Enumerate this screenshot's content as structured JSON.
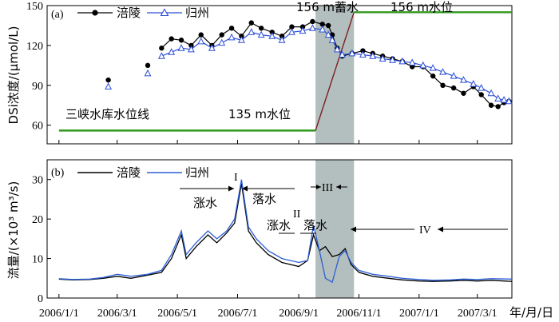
{
  "chart_data": [
    {
      "type": "scatter",
      "panel_label": "(a)",
      "ylabel": "DSi浓度/(μmol/L)",
      "ylim": [
        46,
        150
      ],
      "yticks": [
        60,
        90,
        120,
        150
      ],
      "series": [
        {
          "name": "涪陵",
          "color": "#000000",
          "marker": "filled-circle",
          "points": [
            [
              "2006-02-20",
              94
            ],
            [
              "2006-04-01",
              105
            ],
            [
              "2006-04-15",
              118
            ],
            [
              "2006-04-25",
              125
            ],
            [
              "2006-05-05",
              124
            ],
            [
              "2006-05-15",
              120
            ],
            [
              "2006-05-25",
              128
            ],
            [
              "2006-06-05",
              120
            ],
            [
              "2006-06-15",
              128
            ],
            [
              "2006-06-25",
              133
            ],
            [
              "2006-07-05",
              127
            ],
            [
              "2006-07-15",
              137
            ],
            [
              "2006-07-25",
              133
            ],
            [
              "2006-08-05",
              130
            ],
            [
              "2006-08-15",
              127
            ],
            [
              "2006-08-25",
              134
            ],
            [
              "2006-09-05",
              134
            ],
            [
              "2006-09-15",
              138
            ],
            [
              "2006-09-25",
              136
            ],
            [
              "2006-10-01",
              135
            ],
            [
              "2006-10-05",
              128
            ],
            [
              "2006-10-10",
              118
            ],
            [
              "2006-10-15",
              112
            ],
            [
              "2006-10-25",
              114
            ],
            [
              "2006-11-05",
              116
            ],
            [
              "2006-11-15",
              114
            ],
            [
              "2006-11-25",
              112
            ],
            [
              "2006-12-05",
              110
            ],
            [
              "2006-12-15",
              108
            ],
            [
              "2006-12-25",
              104
            ],
            [
              "2007-01-05",
              104
            ],
            [
              "2007-01-15",
              97
            ],
            [
              "2007-01-25",
              90
            ],
            [
              "2007-02-05",
              88
            ],
            [
              "2007-02-15",
              84
            ],
            [
              "2007-02-25",
              89
            ],
            [
              "2007-03-05",
              83
            ],
            [
              "2007-03-15",
              75
            ],
            [
              "2007-03-22",
              74
            ],
            [
              "2007-03-28",
              77
            ],
            [
              "2007-04-02",
              78
            ]
          ]
        },
        {
          "name": "归州",
          "color": "#2c4fd6",
          "marker": "open-triangle",
          "points": [
            [
              "2006-02-20",
              89
            ],
            [
              "2006-04-01",
              99
            ],
            [
              "2006-04-15",
              112
            ],
            [
              "2006-04-25",
              115
            ],
            [
              "2006-05-05",
              118
            ],
            [
              "2006-05-15",
              117
            ],
            [
              "2006-05-25",
              123
            ],
            [
              "2006-06-05",
              118
            ],
            [
              "2006-06-15",
              122
            ],
            [
              "2006-06-25",
              126
            ],
            [
              "2006-07-05",
              124
            ],
            [
              "2006-07-15",
              130
            ],
            [
              "2006-07-25",
              128
            ],
            [
              "2006-08-05",
              127
            ],
            [
              "2006-08-15",
              124
            ],
            [
              "2006-08-25",
              130
            ],
            [
              "2006-09-05",
              131
            ],
            [
              "2006-09-15",
              133
            ],
            [
              "2006-09-25",
              132
            ],
            [
              "2006-10-01",
              128
            ],
            [
              "2006-10-05",
              124
            ],
            [
              "2006-10-10",
              117
            ],
            [
              "2006-10-15",
              113
            ],
            [
              "2006-10-25",
              114
            ],
            [
              "2006-11-05",
              113
            ],
            [
              "2006-11-15",
              112
            ],
            [
              "2006-11-25",
              110
            ],
            [
              "2006-12-05",
              109
            ],
            [
              "2006-12-15",
              108
            ],
            [
              "2006-12-25",
              107
            ],
            [
              "2007-01-05",
              105
            ],
            [
              "2007-01-15",
              103
            ],
            [
              "2007-01-25",
              100
            ],
            [
              "2007-02-05",
              97
            ],
            [
              "2007-02-15",
              94
            ],
            [
              "2007-02-25",
              91
            ],
            [
              "2007-03-05",
              88
            ],
            [
              "2007-03-15",
              84
            ],
            [
              "2007-03-22",
              80
            ],
            [
              "2007-03-28",
              79
            ],
            [
              "2007-04-02",
              78
            ]
          ]
        }
      ],
      "water_level_line": {
        "color": "#2e9a1c",
        "ramp_color": "#7a1f1f",
        "points": [
          [
            "2006-01-01",
            56
          ],
          [
            "2006-09-18",
            56
          ],
          [
            "2006-10-27",
            145
          ],
          [
            "2007-04-05",
            145
          ]
        ]
      },
      "shaded_period": {
        "from": "2006-09-18",
        "to": "2006-10-27",
        "color": "#b3bfbe"
      },
      "annotations": {
        "reservoir_line": "三峡水库水位线",
        "level_135": "135 m水位",
        "impounding": "156 m蓄水",
        "level_156": "156 m水位"
      }
    },
    {
      "type": "line",
      "panel_label": "(b)",
      "ylabel": "流量/(×10³ m³/s)",
      "ylim": [
        0,
        35
      ],
      "yticks": [
        0,
        10,
        20,
        30
      ],
      "series": [
        {
          "name": "涪陵",
          "color": "#000000",
          "points": [
            [
              "2006-01-01",
              4.8
            ],
            [
              "2006-01-15",
              4.6
            ],
            [
              "2006-02-01",
              4.7
            ],
            [
              "2006-02-15",
              5.0
            ],
            [
              "2006-03-01",
              5.5
            ],
            [
              "2006-03-15",
              5.0
            ],
            [
              "2006-04-01",
              5.8
            ],
            [
              "2006-04-15",
              6.5
            ],
            [
              "2006-04-25",
              10.0
            ],
            [
              "2006-05-05",
              16.0
            ],
            [
              "2006-05-10",
              10.0
            ],
            [
              "2006-05-20",
              13.0
            ],
            [
              "2006-06-01",
              16.0
            ],
            [
              "2006-06-10",
              14.0
            ],
            [
              "2006-06-20",
              16.5
            ],
            [
              "2006-06-28",
              19.0
            ],
            [
              "2006-07-05",
              29.0
            ],
            [
              "2006-07-12",
              17.0
            ],
            [
              "2006-07-20",
              14.0
            ],
            [
              "2006-08-01",
              11.0
            ],
            [
              "2006-08-15",
              9.0
            ],
            [
              "2006-09-01",
              8.0
            ],
            [
              "2006-09-10",
              9.5
            ],
            [
              "2006-09-16",
              16.0
            ],
            [
              "2006-09-22",
              12.0
            ],
            [
              "2006-09-28",
              13.0
            ],
            [
              "2006-10-05",
              10.5
            ],
            [
              "2006-10-12",
              11.0
            ],
            [
              "2006-10-18",
              12.5
            ],
            [
              "2006-10-24",
              8.5
            ],
            [
              "2006-11-01",
              6.5
            ],
            [
              "2006-11-15",
              5.5
            ],
            [
              "2006-12-01",
              5.0
            ],
            [
              "2006-12-15",
              4.6
            ],
            [
              "2007-01-01",
              4.3
            ],
            [
              "2007-01-15",
              4.2
            ],
            [
              "2007-02-01",
              4.3
            ],
            [
              "2007-02-15",
              4.5
            ],
            [
              "2007-03-01",
              4.3
            ],
            [
              "2007-03-15",
              4.5
            ],
            [
              "2007-04-05",
              4.2
            ]
          ]
        },
        {
          "name": "归州",
          "color": "#2c5fd6",
          "points": [
            [
              "2006-01-01",
              4.9
            ],
            [
              "2006-01-15",
              4.7
            ],
            [
              "2006-02-01",
              4.8
            ],
            [
              "2006-02-15",
              5.2
            ],
            [
              "2006-03-01",
              6.0
            ],
            [
              "2006-03-15",
              5.5
            ],
            [
              "2006-04-01",
              6.0
            ],
            [
              "2006-04-15",
              7.0
            ],
            [
              "2006-04-25",
              11.0
            ],
            [
              "2006-05-05",
              17.0
            ],
            [
              "2006-05-10",
              11.0
            ],
            [
              "2006-05-20",
              14.0
            ],
            [
              "2006-06-01",
              17.0
            ],
            [
              "2006-06-10",
              15.0
            ],
            [
              "2006-06-20",
              17.0
            ],
            [
              "2006-06-28",
              20.0
            ],
            [
              "2006-07-05",
              30.0
            ],
            [
              "2006-07-12",
              18.0
            ],
            [
              "2006-07-20",
              15.0
            ],
            [
              "2006-08-01",
              12.0
            ],
            [
              "2006-08-15",
              10.0
            ],
            [
              "2006-09-01",
              9.0
            ],
            [
              "2006-09-10",
              9.5
            ],
            [
              "2006-09-16",
              18.5
            ],
            [
              "2006-09-22",
              12.0
            ],
            [
              "2006-09-28",
              5.0
            ],
            [
              "2006-10-05",
              4.0
            ],
            [
              "2006-10-12",
              10.5
            ],
            [
              "2006-10-18",
              12.0
            ],
            [
              "2006-10-24",
              9.0
            ],
            [
              "2006-11-01",
              7.0
            ],
            [
              "2006-11-15",
              6.0
            ],
            [
              "2006-12-01",
              5.5
            ],
            [
              "2006-12-15",
              5.0
            ],
            [
              "2007-01-01",
              4.7
            ],
            [
              "2007-01-15",
              4.5
            ],
            [
              "2007-02-01",
              4.6
            ],
            [
              "2007-02-15",
              4.8
            ],
            [
              "2007-03-01",
              4.7
            ],
            [
              "2007-03-15",
              4.9
            ],
            [
              "2007-04-05",
              4.8
            ]
          ]
        }
      ],
      "shaded_period": {
        "from": "2006-09-18",
        "to": "2006-10-27",
        "color": "#b3bfbe"
      },
      "annotations": {
        "peak_I": "I",
        "rise_1": "涨水",
        "fall_1": "落水",
        "peak_II": "II",
        "rise_2": "涨水",
        "fall_2": "落水",
        "period_III": "III",
        "period_IV": "IV"
      }
    }
  ],
  "x_axis": {
    "range": [
      "2005-12-20",
      "2007-04-05"
    ],
    "ticks": [
      "2006/1/1",
      "2006/3/1",
      "2006/5/1",
      "2006/7/1",
      "2006/9/1",
      "2006/11/1",
      "2007/1/1",
      "2007/3/1"
    ],
    "unit_label": "年/月/日"
  }
}
